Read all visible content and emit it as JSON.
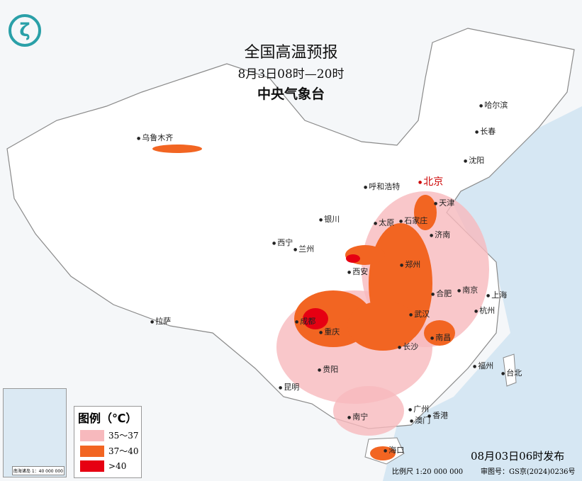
{
  "title": "全国高温预报",
  "period": "8月3日08时—20时",
  "agency": "中央气象台",
  "cities": [
    "乌鲁木齐",
    "哈尔滨",
    "长春",
    "沈阳",
    "北京",
    "天津",
    "呼和浩特",
    "石家庄",
    "太原",
    "济南",
    "银川",
    "西宁",
    "兰州",
    "西安",
    "郑州",
    "合肥",
    "南京",
    "上海",
    "杭州",
    "武汉",
    "成都",
    "重庆",
    "长沙",
    "南昌",
    "拉萨",
    "贵阳",
    "昆明",
    "福州",
    "台北",
    "南宁",
    "广州",
    "香港",
    "澳门",
    "海口"
  ],
  "legend": {
    "title": "图例（℃）",
    "items": [
      {
        "label": "35～37",
        "color": "#f7b9bd"
      },
      {
        "label": "37～40",
        "color": "#f26522"
      },
      {
        "label": ">40",
        "color": "#e60012"
      }
    ]
  },
  "inset": {
    "caption": "南海诸岛 1：40 000 000"
  },
  "issued": "08月03日06时发布",
  "scale": "比例尺 1:20 000 000",
  "review": "审图号：GS京(2024)0236号",
  "colors": {
    "sea": "#d6e7f3",
    "land": "#ffffff",
    "border": "#8a8a8a"
  }
}
